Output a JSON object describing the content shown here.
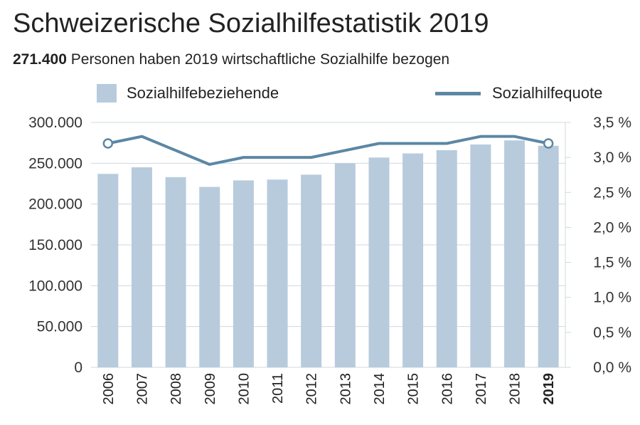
{
  "title": "Schweizerische Sozialhilfestatistik 2019",
  "subtitle": {
    "number": "271.400",
    "text": " Personen haben 2019 wirtschaftliche Sozialhilfe bezogen"
  },
  "colors": {
    "bar": "#b7cbdc",
    "line": "#5b87a4",
    "grid": "#cfd8df"
  },
  "chart_data": {
    "type": "bar",
    "categories": [
      "2006",
      "2007",
      "2008",
      "2009",
      "2010",
      "2011",
      "2012",
      "2013",
      "2014",
      "2015",
      "2016",
      "2017",
      "2018",
      "2019"
    ],
    "highlight_category": "2019",
    "series": [
      {
        "name": "Sozialhilfebeziehende",
        "type": "bar",
        "axis": "left",
        "values": [
          237000,
          245000,
          233000,
          221000,
          229000,
          230000,
          236000,
          250000,
          257000,
          262000,
          266000,
          273000,
          278000,
          271400
        ]
      },
      {
        "name": "Sozialhilfequote",
        "type": "line",
        "axis": "right",
        "values": [
          3.2,
          3.3,
          3.1,
          2.9,
          3.0,
          3.0,
          3.0,
          3.1,
          3.2,
          3.2,
          3.2,
          3.3,
          3.3,
          3.2
        ]
      }
    ],
    "left_axis": {
      "ylim": [
        0,
        300000
      ],
      "ticks": [
        0,
        50000,
        100000,
        150000,
        200000,
        250000,
        300000
      ],
      "tick_labels": [
        "0",
        "50.000",
        "100.000",
        "150.000",
        "200.000",
        "250.000",
        "300.000"
      ]
    },
    "right_axis": {
      "ylim": [
        0,
        3.5
      ],
      "ticks": [
        0,
        0.5,
        1.0,
        1.5,
        2.0,
        2.5,
        3.0,
        3.5
      ],
      "tick_labels": [
        "0,0 %",
        "0,5 %",
        "1,0 %",
        "1,5 %",
        "2,0 %",
        "2,5 %",
        "3,0 %",
        "3,5 %"
      ]
    },
    "grid": true,
    "legend_placement": "top"
  }
}
